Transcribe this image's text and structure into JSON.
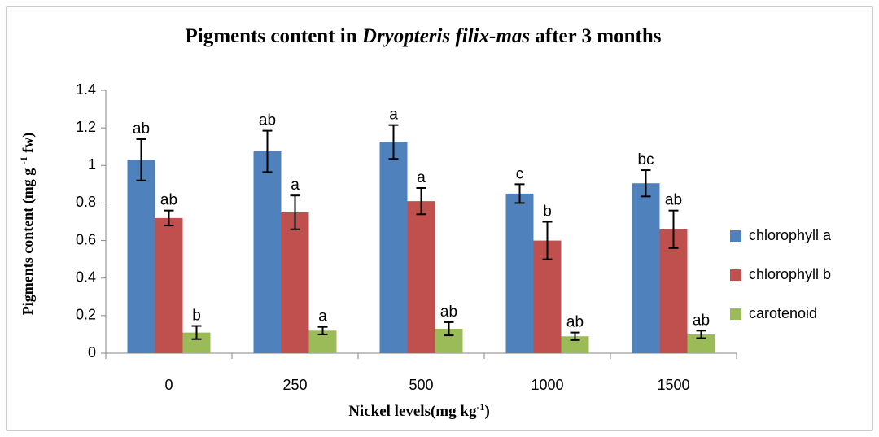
{
  "chart_data": {
    "type": "bar",
    "title_parts": [
      "Pigments content in ",
      "Dryopteris filix-mas",
      " after 3 months"
    ],
    "y_label_parts": [
      "Pigments content (mg g ",
      "-1",
      " fw)"
    ],
    "x_label_parts": [
      "Nickel levels(mg kg",
      "-1",
      ")"
    ],
    "categories": [
      "0",
      "250",
      "500",
      "1000",
      "1500"
    ],
    "series": [
      {
        "name": "chlorophyll a",
        "color": "#4f81bd",
        "values": [
          1.03,
          1.075,
          1.125,
          0.85,
          0.905
        ],
        "errors": [
          0.11,
          0.11,
          0.09,
          0.05,
          0.07
        ],
        "letters": [
          "ab",
          "ab",
          "a",
          "c",
          "bc"
        ]
      },
      {
        "name": "chlorophyll b",
        "color": "#c0504d",
        "values": [
          0.72,
          0.75,
          0.81,
          0.6,
          0.66
        ],
        "errors": [
          0.04,
          0.09,
          0.07,
          0.1,
          0.1
        ],
        "letters": [
          "ab",
          "a",
          "a",
          "b",
          "ab"
        ]
      },
      {
        "name": "carotenoid",
        "color": "#9bbb59",
        "values": [
          0.11,
          0.12,
          0.13,
          0.09,
          0.1
        ],
        "errors": [
          0.035,
          0.02,
          0.035,
          0.02,
          0.02
        ],
        "letters": [
          "b",
          "a",
          "ab",
          "ab",
          "ab"
        ]
      }
    ],
    "ylim": [
      0,
      1.4
    ],
    "yticks": [
      0,
      0.2,
      0.4,
      0.6,
      0.8,
      1,
      1.2,
      1.4
    ],
    "grid": false,
    "legend": "right"
  }
}
